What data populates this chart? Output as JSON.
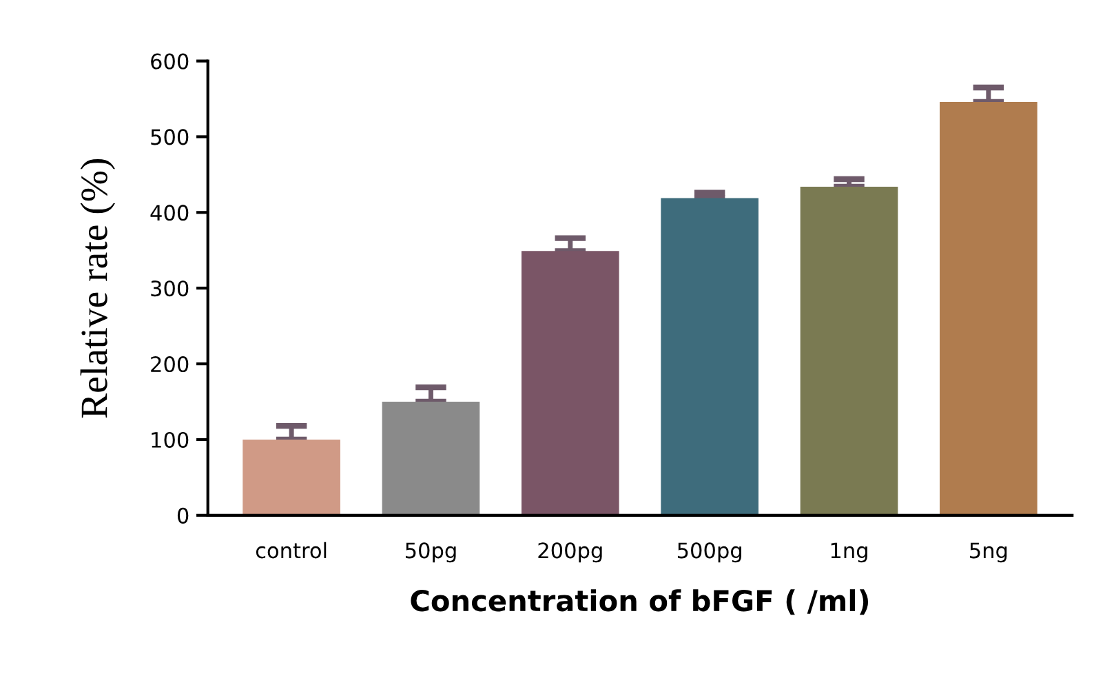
{
  "chart_data": {
    "type": "bar",
    "xlabel": "Concentration of bFGF ( /ml)",
    "ylabel": "Relative rate (%)",
    "categories": [
      "control",
      "50pg",
      "200pg",
      "500pg",
      "1ng",
      "5ng"
    ],
    "values": [
      100,
      150,
      349,
      419,
      434,
      546
    ],
    "errors": [
      [
        100,
        118
      ],
      [
        150,
        169
      ],
      [
        349,
        366
      ],
      [
        419,
        426
      ],
      [
        434,
        444
      ],
      [
        546,
        565
      ]
    ],
    "colors": [
      "#d09a86",
      "#8a8a8a",
      "#7a5566",
      "#3e6c7c",
      "#7a7a52",
      "#b07c4e"
    ],
    "ylim": [
      0,
      600
    ],
    "yticks": [
      0,
      100,
      200,
      300,
      400,
      500,
      600
    ],
    "grid": false,
    "legend": false
  }
}
